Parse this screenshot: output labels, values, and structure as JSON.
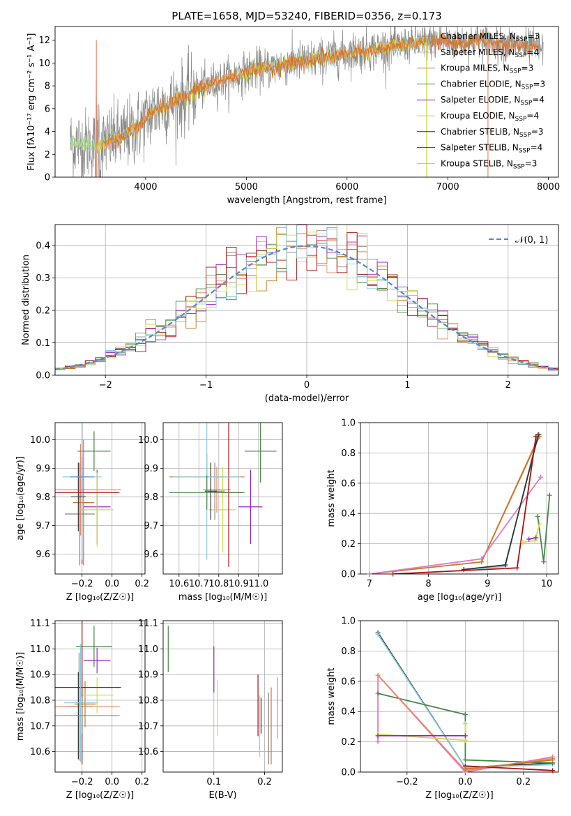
{
  "figure_title": "PLATE=1658, MJD=53240, FIBERID=0356, z=0.173",
  "colors": {
    "Chabrier MILES": "#888888",
    "Salpeter MILES": "#ee8866",
    "Kroupa MILES": "#cc7722",
    "Chabrier ELODIE": "#448844",
    "Salpeter ELODIE": "#9922cc",
    "Kroupa ELODIE": "#ccdd44",
    "Chabrier STELIB": "#333333",
    "Salpeter STELIB": "#aa1111",
    "Kroupa STELIB": "#88ccdd",
    "pink": "#e377c2",
    "normal": "#5588cc"
  },
  "chart_data": [
    {
      "id": "spectrum",
      "type": "line",
      "xlabel": "wavelength [Angstrom, rest frame]",
      "ylabel": "Flux [fλ10⁻¹⁷ erg cm⁻² s⁻¹ A⁻¹]",
      "xlim": [
        3100,
        8100
      ],
      "ylim": [
        0,
        13.2
      ],
      "xticks": [
        4000,
        5000,
        6000,
        7000,
        8000
      ],
      "yticks": [
        0,
        2,
        4,
        6,
        8,
        10,
        12
      ],
      "grid": false,
      "legend_placement": "right",
      "legend": [
        {
          "label": "Chabrier MILES, N",
          "sub": "SSP",
          "suffix": "=3",
          "color_key": "Chabrier MILES"
        },
        {
          "label": "Salpeter MILES, N",
          "sub": "SSP",
          "suffix": "=4",
          "color_key": "Salpeter MILES"
        },
        {
          "label": "Kroupa MILES, N",
          "sub": "SSP",
          "suffix": "=3",
          "color_key": "Kroupa MILES"
        },
        {
          "label": "Chabrier ELODIE, N",
          "sub": "SSP",
          "suffix": "=3",
          "color_key": "Chabrier ELODIE"
        },
        {
          "label": "Salpeter ELODIE, N",
          "sub": "SSP",
          "suffix": "=4",
          "color_key": "Salpeter ELODIE"
        },
        {
          "label": "Kroupa ELODIE, N",
          "sub": "SSP",
          "suffix": "=4",
          "color_key": "Kroupa ELODIE"
        },
        {
          "label": "Chabrier STELIB, N",
          "sub": "SSP",
          "suffix": "=3",
          "color_key": "Chabrier STELIB"
        },
        {
          "label": "Salpeter STELIB, N",
          "sub": "SSP",
          "suffix": "=4",
          "color_key": "Salpeter STELIB"
        },
        {
          "label": "Kroupa STELIB, N",
          "sub": "SSP",
          "suffix": "=3",
          "color_key": "Kroupa STELIB"
        }
      ],
      "continuum": [
        [
          3250,
          3.0
        ],
        [
          3400,
          2.9
        ],
        [
          3550,
          2.7
        ],
        [
          3650,
          3.3
        ],
        [
          3750,
          3.5
        ],
        [
          3850,
          3.9
        ],
        [
          3950,
          4.6
        ],
        [
          4050,
          5.6
        ],
        [
          4150,
          6.2
        ],
        [
          4300,
          6.6
        ],
        [
          4500,
          7.6
        ],
        [
          4700,
          8.3
        ],
        [
          4900,
          8.9
        ],
        [
          5100,
          9.4
        ],
        [
          5300,
          9.7
        ],
        [
          5500,
          10.1
        ],
        [
          5700,
          10.3
        ],
        [
          5900,
          10.7
        ],
        [
          6100,
          11.0
        ],
        [
          6300,
          11.2
        ],
        [
          6500,
          11.5
        ],
        [
          6700,
          11.8
        ],
        [
          6900,
          11.9
        ],
        [
          7100,
          11.8
        ],
        [
          7300,
          12.0
        ],
        [
          7500,
          11.7
        ],
        [
          7700,
          11.6
        ],
        [
          7900,
          11.3
        ]
      ]
    },
    {
      "id": "residuals",
      "type": "histogram",
      "xlabel": "(data-model)/error",
      "ylabel": "Normed distribution",
      "xlim": [
        -2.5,
        2.5
      ],
      "ylim": [
        0,
        0.465
      ],
      "xticks": [
        -2,
        -1,
        0,
        1,
        2
      ],
      "yticks": [
        0.0,
        0.1,
        0.2,
        0.3,
        0.4
      ],
      "grid": true,
      "legend_placement": "upper right",
      "legend": [
        {
          "label": "𝒩(0, 1)",
          "color_key": "normal"
        }
      ],
      "bin_width": 0.1
    },
    {
      "id": "age-vs-Z",
      "type": "errorbar",
      "xlabel": "Z [log₁₀(Z/Z☉)]",
      "ylabel": "age  [log₁₀(age/yr)]",
      "xlim": [
        -0.38,
        0.22
      ],
      "ylim": [
        9.53,
        10.06
      ],
      "xticks": [
        -0.2,
        0.0,
        0.2
      ],
      "yticks": [
        9.6,
        9.7,
        9.8,
        9.9,
        10.0
      ],
      "grid": true,
      "points": [
        {
          "x": -0.215,
          "y": 9.74,
          "xerr": 0.1,
          "yerr": 0.18,
          "color_key": "Chabrier MILES"
        },
        {
          "x": -0.21,
          "y": 9.825,
          "xerr": 0.27,
          "yerr": 0.16,
          "color_key": "Salpeter MILES"
        },
        {
          "x": -0.19,
          "y": 9.78,
          "xerr": 0.07,
          "yerr": 0.22,
          "color_key": "Kroupa MILES"
        },
        {
          "x": -0.12,
          "y": 9.96,
          "xerr": 0.11,
          "yerr": 0.07,
          "color_key": "Chabrier ELODIE"
        },
        {
          "x": -0.1,
          "y": 9.765,
          "xerr": 0.09,
          "yerr": 0.13,
          "color_key": "Salpeter ELODIE"
        },
        {
          "x": -0.1,
          "y": 9.755,
          "xerr": 0.11,
          "yerr": 0.13,
          "color_key": "Kroupa ELODIE"
        },
        {
          "x": -0.225,
          "y": 9.8,
          "xerr": 0.05,
          "yerr": 0.12,
          "color_key": "Chabrier STELIB"
        },
        {
          "x": -0.2,
          "y": 9.815,
          "xerr": 0.25,
          "yerr": 0.25,
          "color_key": "Salpeter STELIB"
        },
        {
          "x": -0.2,
          "y": 9.87,
          "xerr": 0.13,
          "yerr": 0.29,
          "color_key": "Kroupa STELIB"
        },
        {
          "x": -0.2,
          "y": 9.87,
          "xerr": 0.08,
          "yerr": 0.07,
          "color_key": "normal"
        }
      ]
    },
    {
      "id": "age-vs-mass",
      "type": "errorbar",
      "xlabel": "mass [log₁₀(M/M☉)]",
      "ylabel": "",
      "xlim": [
        10.52,
        11.12
      ],
      "ylim": [
        9.53,
        10.06
      ],
      "xticks": [
        10.6,
        10.7,
        10.8,
        10.9,
        11.0
      ],
      "yticks": [
        9.6,
        9.7,
        9.8,
        9.9,
        10.0
      ],
      "grid": true,
      "points": [
        {
          "x": 10.78,
          "y": 9.82,
          "xerr": 0.05,
          "yerr": 0.1,
          "color_key": "Chabrier MILES"
        },
        {
          "x": 10.79,
          "y": 9.825,
          "xerr": 0.07,
          "yerr": 0.08,
          "color_key": "Salpeter MILES"
        },
        {
          "x": 10.74,
          "y": 9.87,
          "xerr": 0.19,
          "yerr": 0.08,
          "color_key": "Kroupa MILES"
        },
        {
          "x": 11.01,
          "y": 9.96,
          "xerr": 0.08,
          "yerr": 0.11,
          "color_key": "Chabrier ELODIE"
        },
        {
          "x": 10.96,
          "y": 9.765,
          "xerr": 0.06,
          "yerr": 0.13,
          "color_key": "Salpeter ELODIE"
        },
        {
          "x": 10.82,
          "y": 9.755,
          "xerr": 0.07,
          "yerr": 0.15,
          "color_key": "Kroupa ELODIE"
        },
        {
          "x": 10.76,
          "y": 9.82,
          "xerr": 0.03,
          "yerr": 0.1,
          "color_key": "Chabrier STELIB"
        },
        {
          "x": 10.85,
          "y": 9.815,
          "xerr": 0.07,
          "yerr": 0.26,
          "color_key": "Salpeter STELIB"
        },
        {
          "x": 10.74,
          "y": 9.87,
          "xerr": 0.17,
          "yerr": 0.29,
          "color_key": "Kroupa STELIB"
        },
        {
          "x": 10.74,
          "y": 9.815,
          "xerr": 0.19,
          "yerr": 0.06,
          "color_key": "Chabrier ELODIE"
        }
      ]
    },
    {
      "id": "massweight-vs-age",
      "type": "line",
      "xlabel": "age  [log₁₀(age/yr)]",
      "ylabel": "mass weight",
      "xlim": [
        6.85,
        10.2
      ],
      "ylim": [
        0,
        1
      ],
      "xticks": [
        7,
        8,
        9,
        10
      ],
      "yticks": [
        0.0,
        0.2,
        0.4,
        0.6,
        0.8,
        1.0
      ],
      "grid": true,
      "series": [
        {
          "color_key": "Salpeter MILES",
          "x": [
            8.9,
            9.88
          ],
          "y": [
            0.08,
            0.92
          ]
        },
        {
          "color_key": "Kroupa MILES",
          "x": [
            7.0,
            8.9,
            9.88
          ],
          "y": [
            0.0,
            0.08,
            0.91
          ]
        },
        {
          "color_key": "pink",
          "x": [
            7.0,
            8.9,
            9.9
          ],
          "y": [
            0.0,
            0.1,
            0.64
          ]
        },
        {
          "color_key": "Kroupa STELIB",
          "x": [
            8.6,
            9.3,
            9.85
          ],
          "y": [
            0.03,
            0.05,
            0.92
          ]
        },
        {
          "color_key": "Chabrier STELIB",
          "x": [
            8.6,
            9.3,
            9.86
          ],
          "y": [
            0.03,
            0.06,
            0.92
          ]
        },
        {
          "color_key": "Salpeter STELIB",
          "x": [
            7.4,
            9.5,
            9.82
          ],
          "y": [
            0.0,
            0.04,
            0.91
          ]
        },
        {
          "color_key": "Chabrier ELODIE",
          "x": [
            9.85,
            9.95,
            10.05
          ],
          "y": [
            0.38,
            0.08,
            0.52
          ]
        },
        {
          "color_key": "Kroupa ELODIE",
          "x": [
            9.6,
            9.8,
            9.88
          ],
          "y": [
            0.21,
            0.22,
            0.33
          ]
        },
        {
          "color_key": "Salpeter ELODIE",
          "x": [
            9.7,
            9.82
          ],
          "y": [
            0.23,
            0.24
          ]
        }
      ]
    },
    {
      "id": "mass-vs-Z",
      "type": "errorbar",
      "xlabel": "Z [log₁₀(Z/Z☉)]",
      "ylabel": "mass [log₁₀(M/M☉)]",
      "xlim": [
        -0.38,
        0.22
      ],
      "ylim": [
        10.52,
        11.11
      ],
      "xticks": [
        -0.2,
        0.0,
        0.2
      ],
      "yticks": [
        10.6,
        10.7,
        10.8,
        10.9,
        11.0,
        11.1
      ],
      "grid": true,
      "points": [
        {
          "x": -0.22,
          "y": 10.775,
          "xerr": 0.09,
          "yerr": 0.21,
          "color_key": "Chabrier MILES"
        },
        {
          "x": -0.2,
          "y": 10.775,
          "xerr": 0.25,
          "yerr": 0.12,
          "color_key": "Salpeter MILES"
        },
        {
          "x": -0.18,
          "y": 10.785,
          "xerr": 0.07,
          "yerr": 0.09,
          "color_key": "Kroupa MILES"
        },
        {
          "x": -0.12,
          "y": 11.01,
          "xerr": 0.12,
          "yerr": 0.08,
          "color_key": "Chabrier ELODIE"
        },
        {
          "x": -0.1,
          "y": 10.955,
          "xerr": 0.09,
          "yerr": 0.05,
          "color_key": "Salpeter ELODIE"
        },
        {
          "x": -0.1,
          "y": 10.82,
          "xerr": 0.11,
          "yerr": 0.07,
          "color_key": "Kroupa ELODIE"
        },
        {
          "x": -0.225,
          "y": 10.74,
          "xerr": 0.05,
          "yerr": 0.17,
          "color_key": "Chabrier STELIB"
        },
        {
          "x": -0.2,
          "y": 10.85,
          "xerr": 0.26,
          "yerr": 0.3,
          "color_key": "Salpeter STELIB"
        },
        {
          "x": -0.21,
          "y": 10.79,
          "xerr": 0.11,
          "yerr": 0.23,
          "color_key": "Kroupa STELIB"
        },
        {
          "x": -0.2,
          "y": 10.74,
          "xerr": 0.25,
          "yerr": 0.07,
          "color_key": "Chabrier MILES"
        }
      ]
    },
    {
      "id": "mass-vs-ebv",
      "type": "errorbar",
      "xlabel": "E(B-V)",
      "ylabel": "",
      "xlim": [
        0.0,
        0.235
      ],
      "ylim": [
        10.52,
        11.11
      ],
      "xticks": [
        0.1,
        0.2
      ],
      "yticks": [
        10.6,
        10.7,
        10.8,
        10.9,
        11.0,
        11.1
      ],
      "grid": true,
      "points": [
        {
          "x": 0.01,
          "y": 11.0,
          "xerr": 0,
          "yerr": 0.09,
          "color_key": "Chabrier ELODIE"
        },
        {
          "x": 0.1,
          "y": 10.92,
          "xerr": 0,
          "yerr": 0.09,
          "color_key": "Salpeter ELODIE"
        },
        {
          "x": 0.107,
          "y": 10.77,
          "xerr": 0,
          "yerr": 0.11,
          "color_key": "Kroupa ELODIE"
        },
        {
          "x": 0.187,
          "y": 10.78,
          "xerr": 0,
          "yerr": 0.12,
          "color_key": "Salpeter STELIB"
        },
        {
          "x": 0.19,
          "y": 10.7,
          "xerr": 0,
          "yerr": 0.12,
          "color_key": "Kroupa STELIB"
        },
        {
          "x": 0.193,
          "y": 10.74,
          "xerr": 0,
          "yerr": 0.07,
          "color_key": "Chabrier STELIB"
        },
        {
          "x": 0.208,
          "y": 10.69,
          "xerr": 0,
          "yerr": 0.14,
          "color_key": "Chabrier MILES"
        },
        {
          "x": 0.213,
          "y": 10.7,
          "xerr": 0,
          "yerr": 0.15,
          "color_key": "Kroupa MILES"
        },
        {
          "x": 0.225,
          "y": 10.77,
          "xerr": 0,
          "yerr": 0.12,
          "color_key": "pink"
        }
      ]
    },
    {
      "id": "massweight-vs-Z",
      "type": "line",
      "xlabel": "Z [log₁₀(Z/Z☉)]",
      "ylabel": "mass weight",
      "xlim": [
        -0.36,
        0.32
      ],
      "ylim": [
        0,
        1
      ],
      "xticks": [
        -0.2,
        0.0,
        0.2
      ],
      "yticks": [
        0.0,
        0.2,
        0.4,
        0.6,
        0.8,
        1.0
      ],
      "grid": true,
      "series": [
        {
          "color_key": "Chabrier STELIB",
          "x": [
            -0.3,
            0.0,
            0.3
          ],
          "y": [
            0.92,
            0.03,
            0.06
          ]
        },
        {
          "color_key": "Kroupa STELIB",
          "x": [
            -0.3,
            0.0,
            0.3
          ],
          "y": [
            0.91,
            0.03,
            0.05
          ]
        },
        {
          "color_key": "Chabrier ELODIE",
          "x": [
            -0.3,
            0.0,
            0.0,
            0.3
          ],
          "y": [
            0.52,
            0.38,
            0.08,
            0.06
          ]
        },
        {
          "color_key": "pink",
          "x": [
            -0.3,
            -0.3,
            0.0,
            0.3
          ],
          "y": [
            0.2,
            0.64,
            0.0,
            0.1
          ]
        },
        {
          "color_key": "Salpeter MILES",
          "x": [
            -0.3,
            0.0,
            0.3
          ],
          "y": [
            0.64,
            0.01,
            0.09
          ]
        },
        {
          "color_key": "Kroupa ELODIE",
          "x": [
            -0.3,
            0.0,
            0.0
          ],
          "y": [
            0.25,
            0.21,
            0.32
          ]
        },
        {
          "color_key": "Salpeter ELODIE",
          "x": [
            -0.3,
            0.0
          ],
          "y": [
            0.24,
            0.24
          ]
        },
        {
          "color_key": "Salpeter STELIB",
          "x": [
            0.0,
            0.3
          ],
          "y": [
            0.04,
            0.01
          ]
        },
        {
          "color_key": "Kroupa MILES",
          "x": [
            0.0,
            0.3
          ],
          "y": [
            0.02,
            0.08
          ]
        }
      ]
    }
  ]
}
